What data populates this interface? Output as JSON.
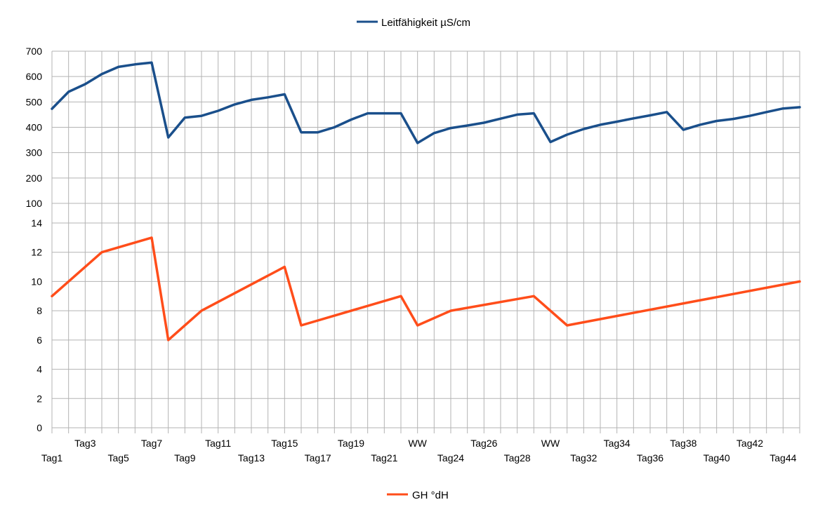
{
  "chart_data": [
    {
      "type": "line",
      "legend": {
        "placement": "top-center"
      },
      "ylim": [
        100,
        700
      ],
      "yticks": [
        100,
        200,
        300,
        400,
        500,
        600,
        700
      ],
      "grid": true,
      "series": [
        {
          "name": "Leitfähigkeit µS/cm",
          "color": "#1a4f8b",
          "values": [
            473,
            540,
            570,
            610,
            638,
            648,
            655,
            360,
            438,
            445,
            465,
            490,
            508,
            518,
            530,
            380,
            380,
            400,
            430,
            455,
            455,
            455,
            338,
            377,
            397,
            407,
            418,
            434,
            450,
            455,
            342,
            371,
            393,
            410,
            422,
            435,
            447,
            460,
            390,
            410,
            425,
            433,
            445,
            460,
            474,
            479
          ]
        }
      ]
    },
    {
      "type": "line",
      "legend": {
        "placement": "bottom-center"
      },
      "ylim": [
        0,
        14
      ],
      "yticks": [
        0,
        2,
        4,
        6,
        8,
        10,
        12,
        14
      ],
      "grid": true,
      "series": [
        {
          "name": "GH °dH",
          "color": "#ff4d1a",
          "points": [
            [
              0,
              9
            ],
            [
              3,
              12
            ],
            [
              6,
              13
            ],
            [
              7,
              6
            ],
            [
              9,
              8
            ],
            [
              14,
              11
            ],
            [
              15,
              7
            ],
            [
              21,
              9
            ],
            [
              22,
              7
            ],
            [
              24,
              8
            ],
            [
              29,
              9
            ],
            [
              31,
              7
            ],
            [
              45,
              10
            ]
          ]
        }
      ]
    }
  ],
  "x_axis": {
    "categories": [
      "Tag1",
      "",
      "Tag3",
      "",
      "Tag5",
      "",
      "Tag7",
      "",
      "Tag9",
      "",
      "Tag11",
      "",
      "Tag13",
      "",
      "Tag15",
      "",
      "Tag17",
      "",
      "Tag19",
      "",
      "Tag21",
      "",
      "WW",
      "",
      "Tag24",
      "",
      "Tag26",
      "",
      "Tag28",
      "",
      "WW",
      "",
      "Tag32",
      "",
      "Tag34",
      "",
      "Tag36",
      "",
      "Tag38",
      "",
      "Tag40",
      "",
      "Tag42",
      "",
      "Tag44",
      ""
    ]
  }
}
